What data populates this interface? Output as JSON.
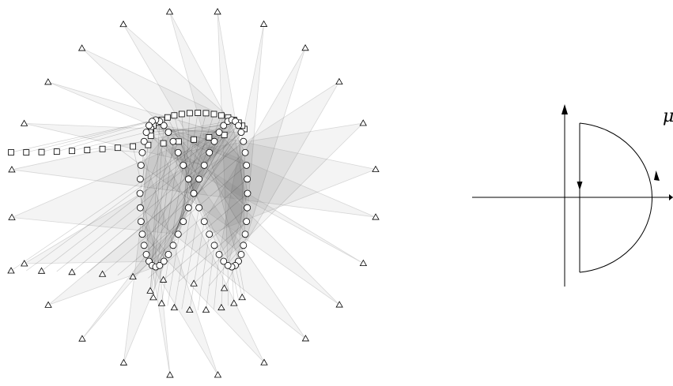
{
  "figure": {
    "contour_label": "μ",
    "colors": {
      "stroke": "#000000",
      "fan_fill": "#000000",
      "fan_line": "#999999"
    },
    "marker_shapes": [
      "triangle",
      "square",
      "circle"
    ]
  }
}
